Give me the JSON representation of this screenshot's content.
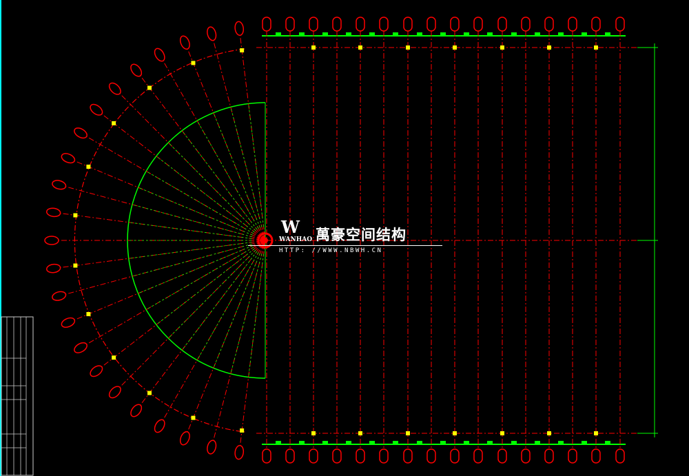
{
  "logo": {
    "mark": "W",
    "english_name": "WANHAO",
    "chinese_name": "萬豪空间结构",
    "url": "HTTP: //WWW.NBWH.CN"
  },
  "colors": {
    "background": "#000000",
    "axis_lines": "#ff0000",
    "beam_lines": "#00ff00",
    "nodes": "#ffff00",
    "frame": "#00ffff",
    "text": "#ffffff"
  }
}
